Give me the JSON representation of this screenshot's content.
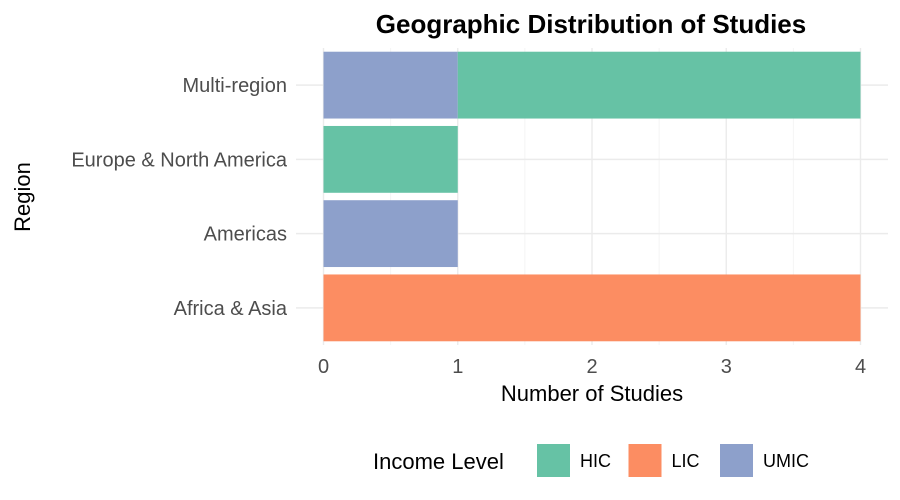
{
  "chart_data": {
    "type": "bar",
    "orientation": "horizontal",
    "stacked": true,
    "title": "Geographic Distribution of Studies",
    "xlabel": "Number of Studies",
    "ylabel": "Region",
    "xlim": [
      0,
      4
    ],
    "x_ticks": [
      0,
      1,
      2,
      3,
      4
    ],
    "categories": [
      "Africa & Asia",
      "Americas",
      "Europe & North America",
      "Multi-region"
    ],
    "series": [
      {
        "name": "HIC",
        "color": "#66C2A5",
        "values": [
          0,
          0,
          1,
          3
        ]
      },
      {
        "name": "LIC",
        "color": "#FC8D62",
        "values": [
          4,
          0,
          0,
          0
        ]
      },
      {
        "name": "UMIC",
        "color": "#8DA0CB",
        "values": [
          0,
          1,
          0,
          1
        ]
      }
    ],
    "stack_order": [
      "UMIC",
      "LIC",
      "HIC"
    ],
    "legend": {
      "title": "Income Level",
      "position": "bottom"
    },
    "grid": true
  }
}
